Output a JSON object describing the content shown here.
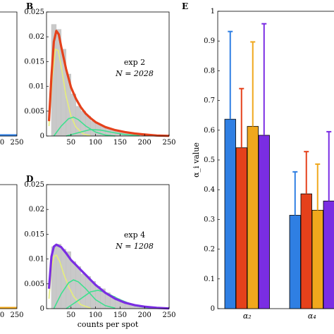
{
  "colors": {
    "blue": "#2f7fe3",
    "red": "#e5411b",
    "orange": "#f0a81d",
    "purple": "#7a2de3",
    "yellow_green": "#e6ee7a",
    "green": "#3fe08f",
    "bar_gray": "#c9c9c9"
  },
  "panel_labels": {
    "B": "B",
    "D": "D",
    "E": "E"
  },
  "chart_data": [
    {
      "id": "panel-left-top",
      "type": "line",
      "note": "partially cropped panel (A)",
      "x_tick_labels": [
        "0",
        "250"
      ],
      "series": [
        {
          "color": "blue",
          "values": [
            [
              0,
              0.0
            ],
            [
              250,
              0.0
            ]
          ]
        }
      ]
    },
    {
      "id": "panel-B",
      "type": "bar",
      "label": "exp 2",
      "n_label": "N = 2028",
      "xlim": [
        0,
        250
      ],
      "ylim": [
        0,
        0.025
      ],
      "x_ticks": [
        "50",
        "100",
        "150",
        "200",
        "250"
      ],
      "y_ticks": [
        "0",
        "0.005",
        "0.01",
        "0.015",
        "0.02",
        "0.025"
      ],
      "histogram": {
        "bin_width": 10,
        "bin_starts": [
          10,
          20,
          30,
          40,
          50,
          60,
          70,
          80,
          90,
          100,
          110,
          120,
          130,
          140,
          150,
          160,
          170,
          180,
          190,
          200,
          210,
          220,
          230,
          240
        ],
        "values": [
          0.0225,
          0.0215,
          0.0175,
          0.0125,
          0.0085,
          0.006,
          0.005,
          0.004,
          0.003,
          0.0025,
          0.002,
          0.0016,
          0.0012,
          0.001,
          0.0008,
          0.0006,
          0.0005,
          0.0004,
          0.0003,
          0.0002,
          0.00015,
          0.0001,
          8e-05,
          5e-05
        ]
      },
      "fit_total": {
        "color": "red",
        "points": [
          [
            5,
            0.003
          ],
          [
            10,
            0.012
          ],
          [
            15,
            0.019
          ],
          [
            20,
            0.0212
          ],
          [
            25,
            0.0205
          ],
          [
            30,
            0.018
          ],
          [
            40,
            0.0135
          ],
          [
            50,
            0.0098
          ],
          [
            60,
            0.0075
          ],
          [
            70,
            0.0058
          ],
          [
            80,
            0.0045
          ],
          [
            90,
            0.0036
          ],
          [
            100,
            0.0028
          ],
          [
            120,
            0.0018
          ],
          [
            140,
            0.0012
          ],
          [
            160,
            0.0008
          ],
          [
            180,
            0.0005
          ],
          [
            200,
            0.0003
          ],
          [
            225,
            0.0001
          ],
          [
            250,
            3e-05
          ]
        ]
      },
      "components": [
        {
          "color": "yellow_green",
          "points": [
            [
              5,
              0.002
            ],
            [
              12,
              0.012
            ],
            [
              18,
              0.0175
            ],
            [
              24,
              0.0172
            ],
            [
              30,
              0.014
            ],
            [
              40,
              0.008
            ],
            [
              50,
              0.004
            ],
            [
              60,
              0.0018
            ],
            [
              75,
              0.0004
            ],
            [
              90,
              5e-05
            ]
          ]
        },
        {
          "color": "green",
          "points": [
            [
              15,
              0.0
            ],
            [
              30,
              0.002
            ],
            [
              45,
              0.0035
            ],
            [
              55,
              0.0038
            ],
            [
              65,
              0.0033
            ],
            [
              80,
              0.002
            ],
            [
              100,
              0.0008
            ],
            [
              120,
              0.0002
            ],
            [
              140,
              0.0
            ]
          ]
        },
        {
          "color": "green",
          "points": [
            [
              40,
              0.0
            ],
            [
              70,
              0.0008
            ],
            [
              90,
              0.0013
            ],
            [
              110,
              0.0012
            ],
            [
              130,
              0.0008
            ],
            [
              160,
              0.0003
            ],
            [
              190,
              5e-05
            ]
          ]
        }
      ]
    },
    {
      "id": "panel-left-bottom",
      "type": "line",
      "note": "partially cropped panel (C)",
      "x_tick_labels": [
        "0",
        "250"
      ],
      "series": [
        {
          "color": "orange",
          "values": [
            [
              0,
              0.0
            ],
            [
              250,
              0.0
            ]
          ]
        }
      ]
    },
    {
      "id": "panel-D",
      "type": "bar",
      "label": "exp 4",
      "n_label": "N = 1208",
      "xlabel": "counts per spot",
      "xlim": [
        0,
        250
      ],
      "ylim": [
        0,
        0.025
      ],
      "x_ticks": [
        "50",
        "100",
        "150",
        "200",
        "250"
      ],
      "y_ticks": [
        "0",
        "0.005",
        "0.01",
        "0.015",
        "0.02",
        "0.025"
      ],
      "histogram": {
        "bin_width": 10,
        "bin_starts": [
          10,
          20,
          30,
          40,
          50,
          60,
          70,
          80,
          90,
          100,
          110,
          120,
          130,
          140,
          150,
          160,
          170,
          180,
          190,
          200,
          210,
          220,
          230
        ],
        "values": [
          0.0125,
          0.013,
          0.012,
          0.0115,
          0.0095,
          0.0085,
          0.007,
          0.0065,
          0.0055,
          0.0045,
          0.004,
          0.0032,
          0.0025,
          0.002,
          0.0015,
          0.0011,
          0.0008,
          0.0006,
          0.0004,
          0.0003,
          0.0002,
          0.0001,
          5e-05
        ]
      },
      "fit_total": {
        "color": "purple",
        "points": [
          [
            5,
            0.004
          ],
          [
            10,
            0.0105
          ],
          [
            15,
            0.0125
          ],
          [
            20,
            0.0129
          ],
          [
            30,
            0.0124
          ],
          [
            40,
            0.0112
          ],
          [
            50,
            0.0098
          ],
          [
            60,
            0.0088
          ],
          [
            70,
            0.0078
          ],
          [
            80,
            0.0068
          ],
          [
            90,
            0.0058
          ],
          [
            100,
            0.0048
          ],
          [
            120,
            0.0032
          ],
          [
            140,
            0.002
          ],
          [
            160,
            0.0012
          ],
          [
            180,
            0.0007
          ],
          [
            200,
            0.0004
          ],
          [
            225,
            0.00015
          ],
          [
            250,
            4e-05
          ]
        ]
      },
      "components": [
        {
          "color": "yellow_green",
          "points": [
            [
              5,
              0.002
            ],
            [
              10,
              0.008
            ],
            [
              15,
              0.0105
            ],
            [
              20,
              0.0108
            ],
            [
              27,
              0.0095
            ],
            [
              35,
              0.007
            ],
            [
              45,
              0.0045
            ],
            [
              55,
              0.0025
            ],
            [
              70,
              0.0008
            ],
            [
              90,
              0.0001
            ]
          ]
        },
        {
          "color": "green",
          "points": [
            [
              15,
              0.0
            ],
            [
              30,
              0.003
            ],
            [
              45,
              0.0052
            ],
            [
              55,
              0.0058
            ],
            [
              65,
              0.0054
            ],
            [
              80,
              0.004
            ],
            [
              100,
              0.0018
            ],
            [
              120,
              0.0006
            ],
            [
              140,
              0.0001
            ]
          ]
        },
        {
          "color": "green",
          "points": [
            [
              40,
              0.0
            ],
            [
              70,
              0.002
            ],
            [
              90,
              0.0034
            ],
            [
              105,
              0.0037
            ],
            [
              120,
              0.0033
            ],
            [
              150,
              0.0018
            ],
            [
              180,
              0.0006
            ],
            [
              210,
              0.0001
            ]
          ]
        }
      ]
    },
    {
      "id": "panel-E",
      "type": "bar",
      "ylabel": "α_i value",
      "ylim": [
        0,
        1
      ],
      "y_ticks": [
        "0",
        "0.1",
        "0.2",
        "0.3",
        "0.4",
        "0.5",
        "0.6",
        "0.7",
        "0.8",
        "0.9",
        "1"
      ],
      "categories": [
        "α₂",
        "α₄"
      ],
      "series": [
        {
          "color": "blue",
          "values": [
            0.637,
            0.314
          ],
          "error_upper": [
            0.932,
            0.46
          ]
        },
        {
          "color": "red",
          "values": [
            0.541,
            0.386
          ],
          "error_upper": [
            0.74,
            0.528
          ]
        },
        {
          "color": "orange",
          "values": [
            0.613,
            0.331
          ],
          "error_upper": [
            0.897,
            0.486
          ]
        },
        {
          "color": "purple",
          "values": [
            0.583,
            0.362
          ],
          "error_upper": [
            0.958,
            0.595
          ]
        }
      ]
    }
  ]
}
